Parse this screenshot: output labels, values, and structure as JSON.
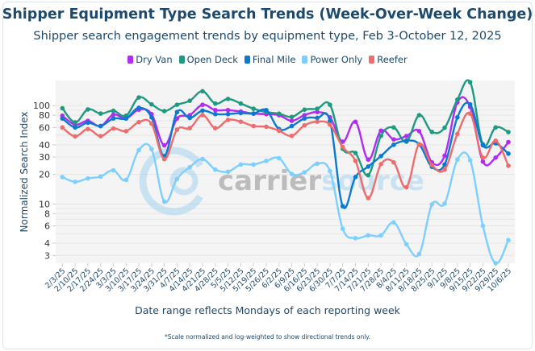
{
  "chart_data": {
    "type": "line",
    "title": "Shipper Equipment Type Search Trends (Week-Over-Week Change)",
    "subtitle": "Shipper search engagement trends by equipment type, Feb 3-October 12, 2025",
    "xlabel": "Date range reflects Mondays of each reporting week",
    "ylabel": "Normalized Search Index",
    "yscale": "log",
    "ylim": [
      2.5,
      180
    ],
    "yticks": [
      3,
      4,
      6,
      8,
      10,
      20,
      30,
      40,
      60,
      80,
      100
    ],
    "grid": true,
    "legend_position": "top-center",
    "footnote": "*Scale normalized and log-weighted to show directional trends only.",
    "watermark": "carriersource",
    "categories": [
      "2/3/25",
      "2/10/25",
      "2/17/25",
      "2/24/25",
      "3/3/25",
      "3/10/25",
      "3/17/25",
      "3/24/25",
      "3/31/25",
      "4/7/25",
      "4/14/25",
      "4/21/25",
      "4/28/25",
      "5/5/25",
      "5/12/25",
      "5/19/25",
      "5/26/25",
      "6/2/25",
      "6/9/25",
      "6/16/25",
      "6/23/25",
      "6/30/25",
      "7/7/25",
      "7/14/25",
      "7/21/25",
      "7/28/25",
      "8/4/25",
      "8/11/25",
      "8/18/25",
      "8/25/25",
      "9/1/25",
      "9/8/25",
      "9/15/25",
      "9/22/25",
      "9/29/25",
      "10/6/25"
    ],
    "series": [
      {
        "name": "Dry Van",
        "color": "#b02cf2",
        "values": [
          79,
          64,
          70,
          62,
          81,
          74,
          91,
          82,
          39.5,
          74,
          80,
          102,
          90,
          90,
          87,
          83,
          82,
          80,
          70,
          80,
          86,
          76,
          43,
          68.5,
          28.3,
          55.6,
          45.4,
          49,
          55,
          26.5,
          31,
          108,
          97,
          27,
          29.6,
          42.6
        ]
      },
      {
        "name": "Open Deck",
        "color": "#1f9a80",
        "values": [
          94,
          67.6,
          91.5,
          83,
          88.7,
          79,
          121,
          103,
          88,
          102,
          112,
          140,
          105,
          117,
          105,
          93,
          86,
          82.8,
          76.7,
          91,
          93,
          102,
          36.4,
          33,
          19.6,
          49.3,
          60,
          43,
          80,
          54,
          59.6,
          115,
          173,
          40.5,
          60,
          53.8
        ]
      },
      {
        "name": "Final Mile",
        "color": "#0a79d0",
        "values": [
          74,
          60,
          67,
          62,
          74,
          74,
          95,
          76,
          30.7,
          86,
          75,
          89,
          82,
          82,
          84,
          83,
          90,
          57.8,
          62,
          74,
          75,
          70,
          9.5,
          18.8,
          24,
          30.7,
          40,
          44,
          40.5,
          23.9,
          25.2,
          76,
          103,
          39.5,
          41.4,
          32.5
        ]
      },
      {
        "name": "Power Only",
        "color": "#7ccfff",
        "values": [
          18.8,
          16.8,
          18.2,
          19,
          22,
          17.6,
          35.3,
          36.2,
          10.6,
          18,
          23.7,
          28.6,
          22.4,
          21.3,
          25.2,
          25.2,
          27.4,
          29.2,
          20.2,
          21,
          25.7,
          21.6,
          5.6,
          4.5,
          4.8,
          4.8,
          6.5,
          3.9,
          3.1,
          9.9,
          10.1,
          28.3,
          27.9,
          6.0,
          2.5,
          4.3
        ]
      },
      {
        "name": "Reefer",
        "color": "#ee6c6c",
        "values": [
          60,
          48.7,
          57.8,
          49,
          58.5,
          55,
          68,
          65.5,
          28.6,
          57,
          59,
          80,
          59,
          71.6,
          68.7,
          62,
          61,
          55.6,
          49.3,
          63,
          68.7,
          64,
          38,
          27.4,
          11.5,
          25.4,
          26.5,
          14.8,
          40.5,
          24.9,
          22.4,
          51.5,
          83,
          29.6,
          44,
          24.5
        ]
      }
    ]
  }
}
